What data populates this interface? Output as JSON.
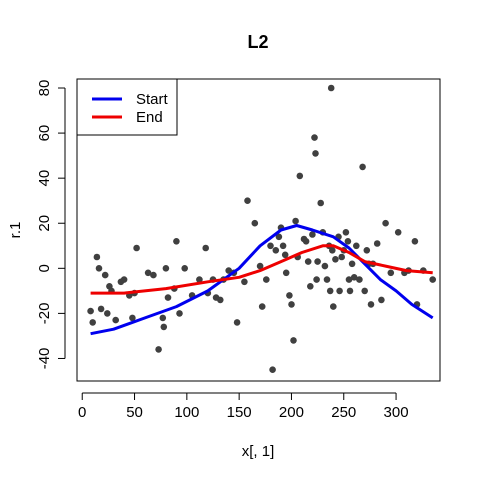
{
  "chart_data": {
    "type": "scatter",
    "title": "L2",
    "xlabel": "x[, 1]",
    "ylabel": "r.1",
    "xlim": [
      -5,
      342
    ],
    "ylim": [
      -50,
      84
    ],
    "xticks": [
      "0",
      "50",
      "100",
      "150",
      "200",
      "250",
      "300"
    ],
    "yticks": [
      "-40",
      "-20",
      "0",
      "20",
      "40",
      "60",
      "80"
    ],
    "grid": false,
    "legend_position": "top-left",
    "point_color": "#404040",
    "points": [
      {
        "x": 8,
        "y": -19
      },
      {
        "x": 10,
        "y": -24
      },
      {
        "x": 14,
        "y": 5
      },
      {
        "x": 16,
        "y": 0
      },
      {
        "x": 18,
        "y": -18
      },
      {
        "x": 22,
        "y": -3
      },
      {
        "x": 24,
        "y": -20
      },
      {
        "x": 26,
        "y": -8
      },
      {
        "x": 28,
        "y": -10
      },
      {
        "x": 32,
        "y": -23
      },
      {
        "x": 37,
        "y": -6
      },
      {
        "x": 40,
        "y": -5
      },
      {
        "x": 45,
        "y": -12
      },
      {
        "x": 48,
        "y": -22
      },
      {
        "x": 50,
        "y": -11
      },
      {
        "x": 52,
        "y": 9
      },
      {
        "x": 63,
        "y": -2
      },
      {
        "x": 68,
        "y": -3
      },
      {
        "x": 73,
        "y": -36
      },
      {
        "x": 77,
        "y": -22
      },
      {
        "x": 78,
        "y": -26
      },
      {
        "x": 80,
        "y": 0
      },
      {
        "x": 82,
        "y": -13
      },
      {
        "x": 88,
        "y": -9
      },
      {
        "x": 90,
        "y": 12
      },
      {
        "x": 93,
        "y": -20
      },
      {
        "x": 98,
        "y": 0
      },
      {
        "x": 105,
        "y": -12
      },
      {
        "x": 112,
        "y": -5
      },
      {
        "x": 118,
        "y": 9
      },
      {
        "x": 120,
        "y": -11
      },
      {
        "x": 125,
        "y": -5
      },
      {
        "x": 128,
        "y": -13
      },
      {
        "x": 132,
        "y": -14
      },
      {
        "x": 135,
        "y": -5
      },
      {
        "x": 140,
        "y": -1
      },
      {
        "x": 145,
        "y": -2
      },
      {
        "x": 148,
        "y": -24
      },
      {
        "x": 155,
        "y": -6
      },
      {
        "x": 158,
        "y": 30
      },
      {
        "x": 165,
        "y": 20
      },
      {
        "x": 170,
        "y": 1
      },
      {
        "x": 172,
        "y": -17
      },
      {
        "x": 176,
        "y": -5
      },
      {
        "x": 180,
        "y": 10
      },
      {
        "x": 182,
        "y": -45
      },
      {
        "x": 185,
        "y": 8
      },
      {
        "x": 188,
        "y": 14
      },
      {
        "x": 190,
        "y": 18
      },
      {
        "x": 192,
        "y": 10
      },
      {
        "x": 194,
        "y": 6
      },
      {
        "x": 195,
        "y": -2
      },
      {
        "x": 198,
        "y": -12
      },
      {
        "x": 200,
        "y": -16
      },
      {
        "x": 202,
        "y": -32
      },
      {
        "x": 204,
        "y": 21
      },
      {
        "x": 206,
        "y": 5
      },
      {
        "x": 208,
        "y": 41
      },
      {
        "x": 212,
        "y": 13
      },
      {
        "x": 214,
        "y": 12
      },
      {
        "x": 216,
        "y": 3
      },
      {
        "x": 218,
        "y": -8
      },
      {
        "x": 220,
        "y": 15
      },
      {
        "x": 222,
        "y": 58
      },
      {
        "x": 223,
        "y": 51
      },
      {
        "x": 224,
        "y": -5
      },
      {
        "x": 225,
        "y": 3
      },
      {
        "x": 228,
        "y": 29
      },
      {
        "x": 230,
        "y": 16
      },
      {
        "x": 232,
        "y": 1
      },
      {
        "x": 234,
        "y": -5
      },
      {
        "x": 236,
        "y": 10
      },
      {
        "x": 237,
        "y": -10
      },
      {
        "x": 238,
        "y": 80
      },
      {
        "x": 239,
        "y": 8
      },
      {
        "x": 240,
        "y": -17
      },
      {
        "x": 242,
        "y": 4
      },
      {
        "x": 245,
        "y": 14
      },
      {
        "x": 246,
        "y": -10
      },
      {
        "x": 248,
        "y": 5
      },
      {
        "x": 250,
        "y": 8
      },
      {
        "x": 252,
        "y": 16
      },
      {
        "x": 254,
        "y": 12
      },
      {
        "x": 255,
        "y": -5
      },
      {
        "x": 256,
        "y": -10
      },
      {
        "x": 258,
        "y": 2
      },
      {
        "x": 260,
        "y": -4
      },
      {
        "x": 262,
        "y": 10
      },
      {
        "x": 265,
        "y": -5
      },
      {
        "x": 268,
        "y": 45
      },
      {
        "x": 270,
        "y": -10
      },
      {
        "x": 272,
        "y": 8
      },
      {
        "x": 274,
        "y": 2
      },
      {
        "x": 276,
        "y": -16
      },
      {
        "x": 278,
        "y": 2
      },
      {
        "x": 282,
        "y": 11
      },
      {
        "x": 286,
        "y": -14
      },
      {
        "x": 290,
        "y": 20
      },
      {
        "x": 295,
        "y": -2
      },
      {
        "x": 302,
        "y": 16
      },
      {
        "x": 308,
        "y": -2
      },
      {
        "x": 312,
        "y": -1
      },
      {
        "x": 318,
        "y": 12
      },
      {
        "x": 320,
        "y": -16
      },
      {
        "x": 326,
        "y": -1
      },
      {
        "x": 335,
        "y": -5
      }
    ],
    "series": [
      {
        "name": "Start",
        "color": "#0000ee",
        "x": [
          8,
          30,
          60,
          90,
          120,
          150,
          170,
          190,
          205,
          220,
          240,
          255,
          270,
          285,
          300,
          315,
          335
        ],
        "y": [
          -29,
          -27,
          -22,
          -17,
          -10,
          0,
          10,
          17,
          19,
          17,
          14,
          9,
          2,
          -5,
          -10,
          -16,
          -22
        ]
      },
      {
        "name": "End",
        "color": "#ee0000",
        "x": [
          8,
          40,
          80,
          120,
          150,
          170,
          190,
          210,
          230,
          240,
          255,
          270,
          290,
          310,
          335
        ],
        "y": [
          -11,
          -11,
          -9,
          -6,
          -4,
          -1,
          3,
          7,
          10,
          10,
          7,
          3,
          1,
          -1,
          -2
        ]
      }
    ]
  }
}
